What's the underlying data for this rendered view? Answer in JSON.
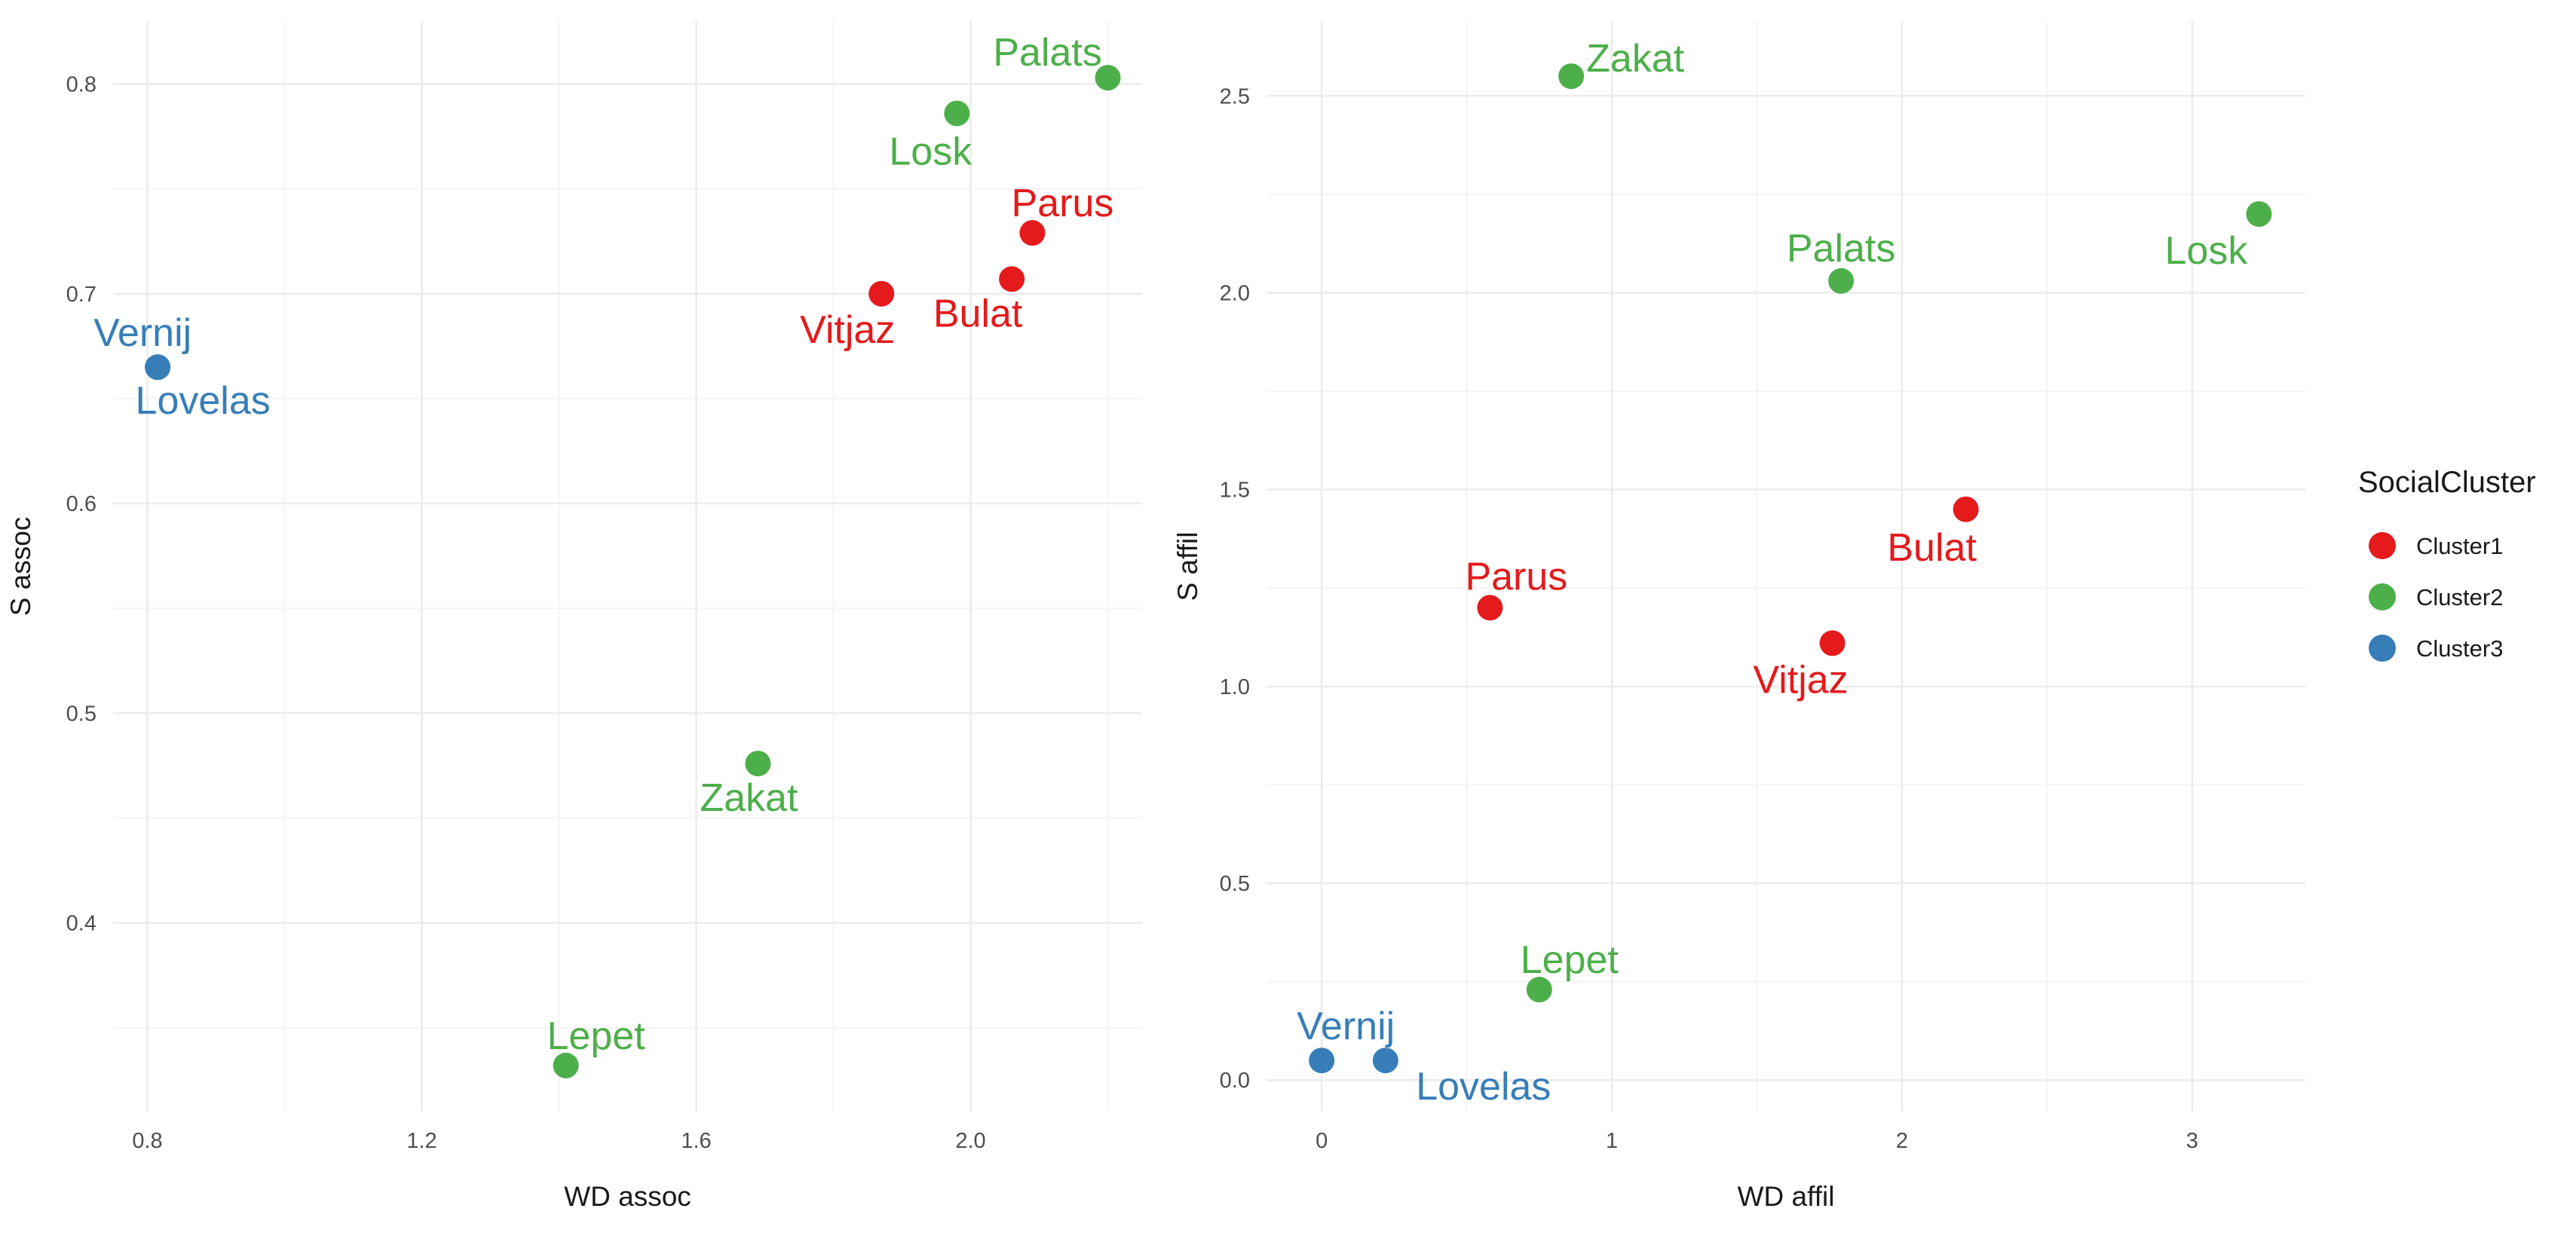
{
  "colors": {
    "Cluster1": "#E41A1C",
    "Cluster2": "#4DAF4A",
    "Cluster3": "#377EB8",
    "grid_major": "#EBEBEB",
    "grid_minor": "#F4F4F4"
  },
  "legend": {
    "title": "SocialCluster",
    "items": [
      {
        "key": "Cluster1",
        "label": "Cluster1"
      },
      {
        "key": "Cluster2",
        "label": "Cluster2"
      },
      {
        "key": "Cluster3",
        "label": "Cluster3"
      }
    ]
  },
  "chart_data": [
    {
      "type": "scatter",
      "title": "",
      "xlabel": "WD assoc",
      "ylabel": "S assoc",
      "xlim": [
        0.75,
        2.25
      ],
      "ylim": [
        0.31,
        0.83
      ],
      "xticks": [
        {
          "value": 0.8,
          "label": "0.8"
        },
        {
          "value": 1.2,
          "label": "1.2"
        },
        {
          "value": 1.6,
          "label": "1.6"
        },
        {
          "value": 2.0,
          "label": "2.0"
        }
      ],
      "yticks": [
        {
          "value": 0.4,
          "label": "0.4"
        },
        {
          "value": 0.5,
          "label": "0.5"
        },
        {
          "value": 0.6,
          "label": "0.6"
        },
        {
          "value": 0.7,
          "label": "0.7"
        },
        {
          "value": 0.8,
          "label": "0.8"
        }
      ],
      "points": [
        {
          "name": "Palats",
          "cluster": "Cluster2",
          "x": 2.2,
          "y": 0.803,
          "label_pos": "above-left"
        },
        {
          "name": "Losk",
          "cluster": "Cluster2",
          "x": 1.98,
          "y": 0.786,
          "label_pos": "below-left"
        },
        {
          "name": "Parus",
          "cluster": "Cluster1",
          "x": 2.09,
          "y": 0.729,
          "label_pos": "above"
        },
        {
          "name": "Vitjaz",
          "cluster": "Cluster1",
          "x": 1.87,
          "y": 0.7,
          "label_pos": "below-left"
        },
        {
          "name": "Bulat",
          "cluster": "Cluster1",
          "x": 2.06,
          "y": 0.707,
          "label_pos": "below-left"
        },
        {
          "name": "Vernij",
          "cluster": "Cluster3",
          "x": 0.815,
          "y": 0.665,
          "label_pos": "above"
        },
        {
          "name": "Lovelas",
          "cluster": "Cluster3",
          "x": 0.815,
          "y": 0.665,
          "label_pos": "below-right"
        },
        {
          "name": "Zakat",
          "cluster": "Cluster2",
          "x": 1.69,
          "y": 0.476,
          "label_pos": "below-left"
        },
        {
          "name": "Lepet",
          "cluster": "Cluster2",
          "x": 1.41,
          "y": 0.332,
          "label_pos": "above-right"
        }
      ]
    },
    {
      "type": "scatter",
      "title": "",
      "xlabel": "WD affil",
      "ylabel": "S affil",
      "xlim": [
        -0.19,
        3.39
      ],
      "ylim": [
        -0.08,
        2.69
      ],
      "xticks": [
        {
          "value": 0,
          "label": "0"
        },
        {
          "value": 1,
          "label": "1"
        },
        {
          "value": 2,
          "label": "2"
        },
        {
          "value": 3,
          "label": "3"
        }
      ],
      "yticks": [
        {
          "value": 0.0,
          "label": "0.0"
        },
        {
          "value": 0.5,
          "label": "0.5"
        },
        {
          "value": 1.0,
          "label": "1.0"
        },
        {
          "value": 1.5,
          "label": "1.5"
        },
        {
          "value": 2.0,
          "label": "2.0"
        },
        {
          "value": 2.5,
          "label": "2.5"
        }
      ],
      "points": [
        {
          "name": "Zakat",
          "cluster": "Cluster2",
          "x": 0.86,
          "y": 2.55,
          "label_pos": "right"
        },
        {
          "name": "Losk",
          "cluster": "Cluster2",
          "x": 3.23,
          "y": 2.2,
          "label_pos": "below-left"
        },
        {
          "name": "Palats",
          "cluster": "Cluster2",
          "x": 1.79,
          "y": 2.03,
          "label_pos": "above"
        },
        {
          "name": "Bulat",
          "cluster": "Cluster1",
          "x": 2.22,
          "y": 1.45,
          "label_pos": "below-left"
        },
        {
          "name": "Parus",
          "cluster": "Cluster1",
          "x": 0.58,
          "y": 1.2,
          "label_pos": "above"
        },
        {
          "name": "Vitjaz",
          "cluster": "Cluster1",
          "x": 1.76,
          "y": 1.11,
          "label_pos": "below-left"
        },
        {
          "name": "Lepet",
          "cluster": "Cluster2",
          "x": 0.75,
          "y": 0.23,
          "label_pos": "above-right"
        },
        {
          "name": "Vernij",
          "cluster": "Cluster3",
          "x": 0.0,
          "y": 0.05,
          "label_pos": "above-right"
        },
        {
          "name": "Lovelas",
          "cluster": "Cluster3",
          "x": 0.22,
          "y": 0.05,
          "label_pos": "below-right"
        }
      ]
    }
  ]
}
